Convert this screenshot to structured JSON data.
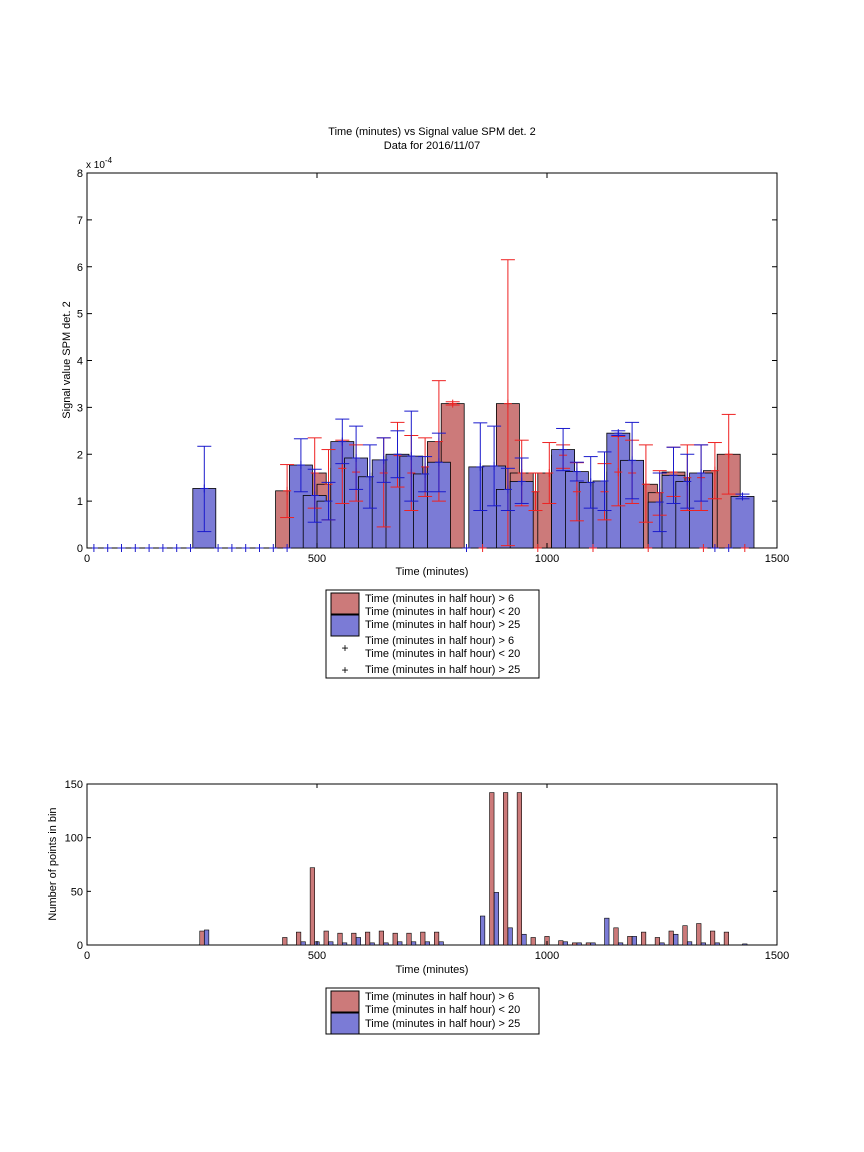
{
  "chart_data": [
    {
      "type": "bar",
      "title": "Time (minutes) vs Signal value SPM det. 2",
      "subtitle": "Data for 2016/11/07",
      "xlabel": "Time (minutes)",
      "ylabel": "Signal value SPM det. 2",
      "exponent_label": "x 10",
      "exponent_power": "-4",
      "xlim": [
        0,
        1500
      ],
      "ylim": [
        0,
        8
      ],
      "xticks": [
        0,
        500,
        1000,
        1500
      ],
      "yticks": [
        0,
        1,
        2,
        3,
        4,
        5,
        6,
        7,
        8
      ],
      "grid": false,
      "legend_position": "below",
      "legend": [
        "Time (minutes in half hour) > 6",
        "Time (minutes in half hour) < 20",
        "Time (minutes in half hour) > 25",
        "Time (minutes in half hour) > 6",
        "Time (minutes in half hour) < 20",
        "Time (minutes in half hour) > 25"
      ],
      "colors": {
        "red_bar": "#cc7a7a",
        "blue_bar": "#7b7bd6",
        "red_marker": "#ee2222",
        "blue_marker": "#1a1acc",
        "edge": "#000000"
      },
      "series": [
        {
          "points": [
            {
              "x": 435,
              "y": 1.22,
              "lo": 0.65,
              "hi": 1.78
            },
            {
              "x": 495,
              "y": 1.6,
              "lo": 0.85,
              "hi": 2.35
            },
            {
              "x": 525,
              "y": 1.36,
              "lo": 0.6,
              "hi": 2.1
            },
            {
              "x": 555,
              "y": 1.7,
              "lo": 0.95,
              "hi": 2.3
            },
            {
              "x": 585,
              "y": 1.62,
              "lo": 1.0,
              "hi": 2.2
            },
            {
              "x": 645,
              "y": 1.6,
              "lo": 0.45,
              "hi": 2.35
            },
            {
              "x": 675,
              "y": 1.97,
              "lo": 1.3,
              "hi": 2.68
            },
            {
              "x": 705,
              "y": 1.6,
              "lo": 0.8,
              "hi": 2.4
            },
            {
              "x": 735,
              "y": 1.73,
              "lo": 1.1,
              "hi": 2.35
            },
            {
              "x": 765,
              "y": 2.27,
              "lo": 1.0,
              "hi": 3.57
            },
            {
              "x": 795,
              "y": 3.08,
              "lo": 3.05,
              "hi": 3.12
            },
            {
              "x": 915,
              "y": 3.08,
              "lo": 0.05,
              "hi": 6.15
            },
            {
              "x": 945,
              "y": 1.6,
              "lo": 0.9,
              "hi": 2.3
            },
            {
              "x": 975,
              "y": 1.2,
              "lo": 0.8,
              "hi": 1.6
            },
            {
              "x": 1005,
              "y": 1.6,
              "lo": 0.95,
              "hi": 2.25
            },
            {
              "x": 1035,
              "y": 1.98,
              "lo": 1.7,
              "hi": 2.2
            },
            {
              "x": 1065,
              "y": 1.2,
              "lo": 0.58,
              "hi": 1.82
            },
            {
              "x": 1125,
              "y": 1.2,
              "lo": 0.6,
              "hi": 1.8
            },
            {
              "x": 1155,
              "y": 1.62,
              "lo": 0.9,
              "hi": 2.38
            },
            {
              "x": 1185,
              "y": 1.6,
              "lo": 0.95,
              "hi": 2.3
            },
            {
              "x": 1215,
              "y": 1.36,
              "lo": 0.55,
              "hi": 2.2
            },
            {
              "x": 1245,
              "y": 1.18,
              "lo": 0.7,
              "hi": 1.65
            },
            {
              "x": 1275,
              "y": 1.62,
              "lo": 1.1,
              "hi": 2.15
            },
            {
              "x": 1305,
              "y": 1.5,
              "lo": 0.8,
              "hi": 2.2
            },
            {
              "x": 1335,
              "y": 1.5,
              "lo": 0.8,
              "hi": 2.2
            },
            {
              "x": 1365,
              "y": 1.65,
              "lo": 1.05,
              "hi": 2.25
            },
            {
              "x": 1395,
              "y": 2.0,
              "lo": 1.15,
              "hi": 2.85
            }
          ],
          "zero_marker_x": [
            860,
            980,
            1100,
            1220,
            1340,
            1430
          ]
        },
        {
          "points": [
            {
              "x": 255,
              "y": 1.27,
              "lo": 0.35,
              "hi": 2.17
            },
            {
              "x": 465,
              "y": 1.77,
              "lo": 1.2,
              "hi": 2.33
            },
            {
              "x": 495,
              "y": 1.12,
              "lo": 0.55,
              "hi": 1.68
            },
            {
              "x": 525,
              "y": 1.0,
              "lo": 0.6,
              "hi": 1.4
            },
            {
              "x": 555,
              "y": 2.27,
              "lo": 1.8,
              "hi": 2.75
            },
            {
              "x": 585,
              "y": 1.92,
              "lo": 1.25,
              "hi": 2.6
            },
            {
              "x": 615,
              "y": 1.52,
              "lo": 0.85,
              "hi": 2.2
            },
            {
              "x": 645,
              "y": 1.88,
              "lo": 1.4,
              "hi": 2.35
            },
            {
              "x": 675,
              "y": 2.0,
              "lo": 1.5,
              "hi": 2.5
            },
            {
              "x": 705,
              "y": 1.96,
              "lo": 1.0,
              "hi": 2.92
            },
            {
              "x": 735,
              "y": 1.58,
              "lo": 1.2,
              "hi": 1.95
            },
            {
              "x": 765,
              "y": 1.83,
              "lo": 1.2,
              "hi": 2.45
            },
            {
              "x": 855,
              "y": 1.73,
              "lo": 0.8,
              "hi": 2.67
            },
            {
              "x": 885,
              "y": 1.75,
              "lo": 0.9,
              "hi": 2.6
            },
            {
              "x": 915,
              "y": 1.25,
              "lo": 0.8,
              "hi": 1.7
            },
            {
              "x": 945,
              "y": 1.42,
              "lo": 0.95,
              "hi": 1.92
            },
            {
              "x": 1035,
              "y": 2.1,
              "lo": 1.65,
              "hi": 2.55
            },
            {
              "x": 1065,
              "y": 1.63,
              "lo": 1.43,
              "hi": 1.83
            },
            {
              "x": 1095,
              "y": 1.4,
              "lo": 0.85,
              "hi": 1.95
            },
            {
              "x": 1125,
              "y": 1.43,
              "lo": 0.8,
              "hi": 2.05
            },
            {
              "x": 1155,
              "y": 2.45,
              "lo": 2.4,
              "hi": 2.5
            },
            {
              "x": 1185,
              "y": 1.87,
              "lo": 1.05,
              "hi": 2.68
            },
            {
              "x": 1245,
              "y": 0.98,
              "lo": 0.35,
              "hi": 1.6
            },
            {
              "x": 1275,
              "y": 1.55,
              "lo": 0.95,
              "hi": 2.15
            },
            {
              "x": 1305,
              "y": 1.42,
              "lo": 0.85,
              "hi": 2.0
            },
            {
              "x": 1335,
              "y": 1.6,
              "lo": 1.0,
              "hi": 2.2
            },
            {
              "x": 1425,
              "y": 1.1,
              "lo": 1.05,
              "hi": 1.15
            }
          ],
          "zero_marker_x": [
            15,
            45,
            75,
            105,
            135,
            165,
            195,
            225,
            285,
            315,
            345,
            375,
            405,
            435,
            825,
            1365,
            1395
          ]
        }
      ]
    },
    {
      "type": "bar",
      "xlabel": "Time (minutes)",
      "ylabel": "Number of points in bin",
      "xlim": [
        0,
        1500
      ],
      "ylim": [
        0,
        150
      ],
      "xticks": [
        0,
        500,
        1000,
        1500
      ],
      "yticks": [
        0,
        50,
        100,
        150
      ],
      "grid": false,
      "legend_position": "below",
      "legend": [
        "Time (minutes in half hour) > 6",
        "Time (minutes in half hour) < 20",
        "Time (minutes in half hour) > 25"
      ],
      "colors": {
        "red_bar": "#cc7a7a",
        "blue_bar": "#7b7bd6",
        "edge": "#000000"
      },
      "series": [
        {
          "x": [
            250,
            430,
            460,
            490,
            520,
            550,
            580,
            610,
            640,
            670,
            700,
            730,
            760,
            880,
            910,
            940,
            970,
            1000,
            1030,
            1060,
            1090,
            1150,
            1180,
            1210,
            1240,
            1270,
            1300,
            1330,
            1360,
            1390
          ],
          "values": [
            13,
            7,
            12,
            72,
            13,
            11,
            11,
            12,
            13,
            11,
            11,
            12,
            12,
            142,
            142,
            142,
            7,
            8,
            4,
            2,
            2,
            16,
            8,
            12,
            7,
            13,
            18,
            20,
            13,
            12
          ]
        },
        {
          "x": [
            260,
            470,
            500,
            530,
            560,
            590,
            620,
            650,
            680,
            710,
            740,
            770,
            860,
            890,
            920,
            950,
            1040,
            1070,
            1100,
            1130,
            1160,
            1190,
            1250,
            1280,
            1310,
            1340,
            1370,
            1430
          ],
          "values": [
            14,
            3,
            3,
            3,
            2,
            7,
            2,
            2,
            3,
            3,
            3,
            3,
            27,
            49,
            16,
            10,
            3,
            2,
            2,
            25,
            2,
            8,
            2,
            10,
            3,
            2,
            2,
            1
          ]
        }
      ]
    }
  ]
}
